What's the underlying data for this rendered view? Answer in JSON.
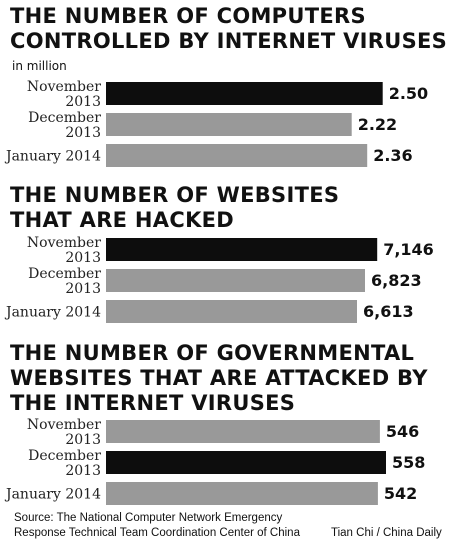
{
  "chart_data": [
    {
      "type": "bar",
      "title": "THE NUMBER OF COMPUTERS\nCONTROLLED BY INTERNET VIRUSES",
      "unit": "in million",
      "categories": [
        "November\n2013",
        "December\n2013",
        "January 2014"
      ],
      "values": [
        2.5,
        2.22,
        2.36
      ],
      "value_labels": [
        "2.50",
        "2.22",
        "2.36"
      ],
      "highlight_index": 0,
      "xlim": [
        0,
        2.62
      ]
    },
    {
      "type": "bar",
      "title": "THE NUMBER OF WEBSITES\nTHAT ARE HACKED",
      "categories": [
        "November\n2013",
        "December\n2013",
        "January 2014"
      ],
      "values": [
        7146,
        6823,
        6613
      ],
      "value_labels": [
        "7,146",
        "6,823",
        "6,613"
      ],
      "highlight_index": 0,
      "xlim": [
        0,
        7640
      ]
    },
    {
      "type": "bar",
      "title": "THE NUMBER OF GOVERNMENTAL\nWEBSITES THAT ARE ATTACKED BY\nTHE INTERNET VIRUSES",
      "categories": [
        "November\n2013",
        "December\n2013",
        "January 2014"
      ],
      "values": [
        546,
        558,
        542
      ],
      "value_labels": [
        "546",
        "558",
        "542"
      ],
      "highlight_index": 1,
      "xlim": [
        0,
        578
      ]
    }
  ],
  "colors": {
    "highlight": "#0d0d0d",
    "normal": "#999999"
  },
  "footer": {
    "source": "Source: The National Computer Network Emergency\nResponse Technical Team Coordination Center of China",
    "credit": "Tian Chi / China Daily"
  }
}
